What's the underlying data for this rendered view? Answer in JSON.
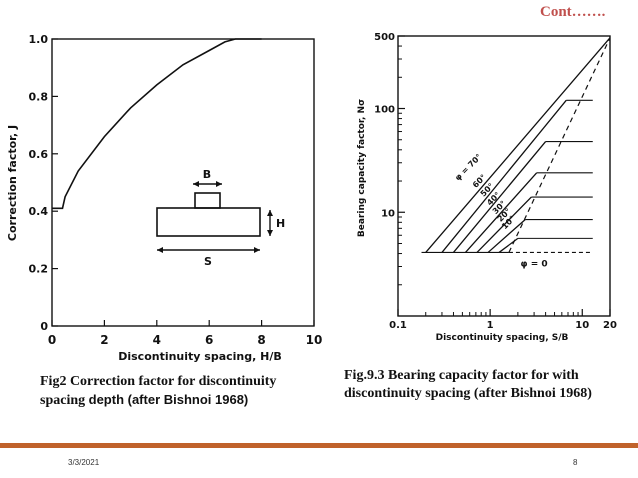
{
  "header": {
    "cont": "Cont……."
  },
  "captions": {
    "fig2_part1": "Fig2  Correction factor for discontinuity spacing",
    "fig2_part2": "depth (after Bishnoi 1968)",
    "fig3": "Fig.9.3  Bearing capacity factor for with discontinuity spacing (after Bishnoi 1968)"
  },
  "footer": {
    "date": "3/3/2021",
    "page": "8"
  },
  "chart_data": [
    {
      "type": "line",
      "xlabel": "Discontinuity spacing, H/B",
      "ylabel": "Correction factor, J",
      "xlim": [
        0,
        10
      ],
      "ylim": [
        0,
        1.0
      ],
      "x_ticks": [
        "0",
        "2",
        "4",
        "6",
        "8",
        "10"
      ],
      "y_ticks": [
        "0",
        "0.2",
        "0.4",
        "0.6",
        "0.8",
        "1.0"
      ],
      "series": [
        {
          "x": [
            0,
            0.4,
            0.5,
            1,
            2,
            3,
            4,
            5,
            6,
            6.6,
            7,
            8
          ],
          "y": [
            0.41,
            0.41,
            0.45,
            0.54,
            0.66,
            0.76,
            0.84,
            0.91,
            0.96,
            0.99,
            1.0,
            1.0
          ]
        }
      ],
      "inset_labels": {
        "b": "B",
        "h": "H",
        "s": "S"
      }
    },
    {
      "type": "line",
      "xlabel": "Discontinuity spacing, S/B",
      "ylabel": "Bearing capacity factor, Nσ",
      "x_scale": "log",
      "y_scale": "log",
      "xlim": [
        0.1,
        20
      ],
      "ylim": [
        1,
        500
      ],
      "x_ticks": [
        "0.1",
        "1",
        "10",
        "20"
      ],
      "y_ticks": [
        "10",
        "100",
        "500"
      ],
      "phi_labels": [
        "φ = 70°",
        "60°",
        "50°",
        "40°",
        "30°",
        "20°",
        "10°"
      ],
      "phi_zero_label": "φ = 0",
      "series": [
        {
          "name": "φ = 70°",
          "x": [
            0.2,
            20
          ],
          "y": [
            4.1,
            480
          ]
        },
        {
          "name": "60°",
          "x": [
            0.3,
            6.7
          ],
          "y": [
            4.1,
            120
          ]
        },
        {
          "name": "50°",
          "x": [
            0.4,
            4.0
          ],
          "y": [
            4.1,
            48
          ]
        },
        {
          "name": "40°",
          "x": [
            0.54,
            3.2
          ],
          "y": [
            4.1,
            24
          ]
        },
        {
          "name": "30°",
          "x": [
            0.72,
            2.8
          ],
          "y": [
            4.1,
            14
          ]
        },
        {
          "name": "20°",
          "x": [
            0.95,
            2.4
          ],
          "y": [
            4.1,
            8.5
          ]
        },
        {
          "name": "10°",
          "x": [
            1.25,
            2.0
          ],
          "y": [
            4.1,
            5.6
          ]
        }
      ],
      "horizontal_levels": [
        {
          "y": 120,
          "x": [
            6.7,
            13
          ]
        },
        {
          "y": 48,
          "x": [
            4.0,
            13
          ]
        },
        {
          "y": 24,
          "x": [
            3.2,
            13
          ]
        },
        {
          "y": 14,
          "x": [
            2.8,
            13
          ]
        },
        {
          "y": 8.5,
          "x": [
            2.4,
            13
          ]
        },
        {
          "y": 5.6,
          "x": [
            2.0,
            13
          ]
        },
        {
          "y": 4.1,
          "x": [
            0.18,
            1.6
          ]
        }
      ],
      "dashed_limit": {
        "x": [
          1.6,
          20
        ],
        "y": [
          4.1,
          480
        ]
      },
      "phi_zero_dashed": {
        "y": 4.1,
        "x": [
          1.6,
          13
        ]
      }
    }
  ]
}
